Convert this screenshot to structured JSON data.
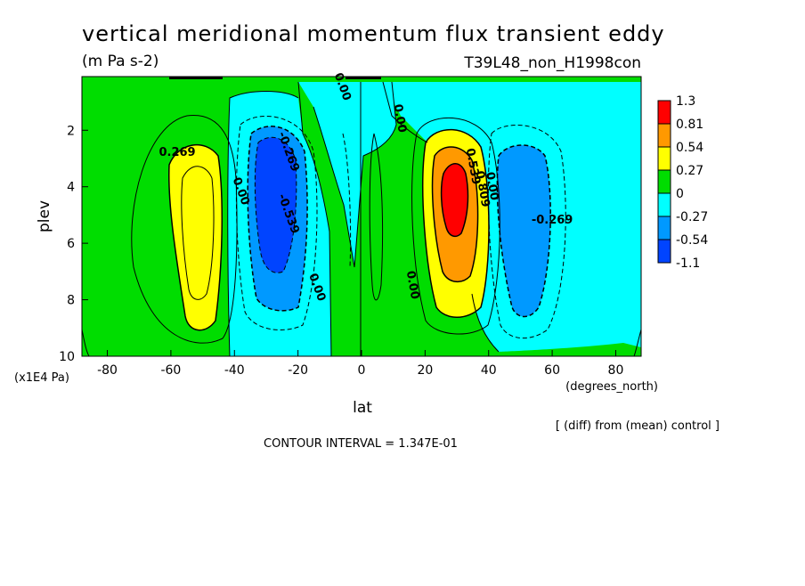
{
  "chart_data": {
    "type": "contour",
    "title": "vertical meridional momentum flux transient eddy",
    "units": "(m Pa s-2)",
    "run_label": "T39L48_non_H1998con",
    "xlabel": "lat",
    "x_units": "(degrees_north)",
    "ylabel": "plev",
    "y_units": "(x1E4 Pa)",
    "xlim": [
      -88,
      88
    ],
    "ylim": [
      10,
      0.1
    ],
    "x_ticks": [
      "-80",
      "-60",
      "-40",
      "-20",
      "0",
      "20",
      "40",
      "60",
      "80"
    ],
    "y_ticks": [
      "2",
      "4",
      "6",
      "8",
      "10"
    ],
    "footnote": "[ (diff) from (mean) control ]",
    "contour_interval": "CONTOUR INTERVAL = 1.347E-01",
    "colorbar": {
      "levels": [
        "1.3",
        "0.81",
        "0.54",
        "0.27",
        "0",
        "-0.27",
        "-0.54",
        "-1.1"
      ],
      "colors": [
        "#ff0000",
        "#ff9900",
        "#ffff00",
        "#00dd00",
        "#00ffff",
        "#0099ff",
        "#0044ff"
      ]
    },
    "contour_labels": [
      {
        "text": "0.269",
        "lat": -58,
        "plev": 2.9
      },
      {
        "text": "0.00",
        "lat": -39,
        "plev": 4.2
      },
      {
        "text": "-0.269",
        "lat": -24,
        "plev": 2.8
      },
      {
        "text": "-0.539",
        "lat": -24,
        "plev": 5.0
      },
      {
        "text": "0.00",
        "lat": -15,
        "plev": 7.6
      },
      {
        "text": "0.00",
        "lat": -7,
        "plev": 0.5
      },
      {
        "text": "0.00",
        "lat": 11,
        "plev": 1.6
      },
      {
        "text": "0.00",
        "lat": 15,
        "plev": 7.5
      },
      {
        "text": "0.539",
        "lat": 34,
        "plev": 3.3
      },
      {
        "text": "0.809",
        "lat": 37,
        "plev": 4.1
      },
      {
        "text": "0.00",
        "lat": 40,
        "plev": 4.0
      },
      {
        "text": "-0.269",
        "lat": 60,
        "plev": 5.3
      }
    ],
    "features": [
      {
        "kind": "max",
        "lat": 29,
        "plev": 4.2,
        "value_class": "1.3",
        "color": "#ff0000"
      },
      {
        "kind": "max",
        "lat": -53,
        "plev": 5.0,
        "value_class": "0.27",
        "color": "#ffff00"
      },
      {
        "kind": "min",
        "lat": -30,
        "plev": 4.5,
        "value_class": "-1.1",
        "color": "#0044ff"
      },
      {
        "kind": "min",
        "lat": 52,
        "plev": 5.0,
        "value_class": "-0.54",
        "color": "#0099ff"
      }
    ]
  }
}
